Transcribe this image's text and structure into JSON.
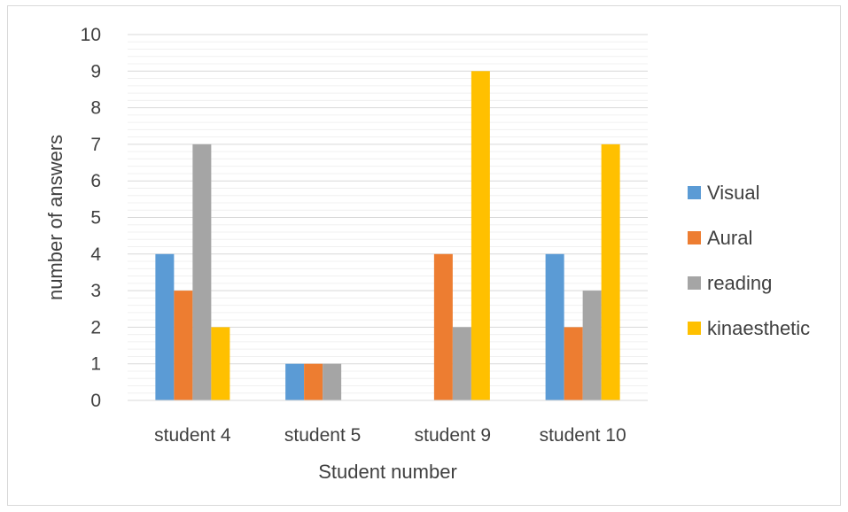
{
  "chart_data": {
    "type": "bar",
    "title": "",
    "xlabel": "Student number",
    "ylabel": "number of answers",
    "categories": [
      "student 4",
      "student 5",
      "student 9",
      "student 10"
    ],
    "ylim": [
      0,
      10
    ],
    "yticks": [
      0,
      1,
      2,
      3,
      4,
      5,
      6,
      7,
      8,
      9,
      10
    ],
    "minor_grid_step": 0.2,
    "grid": true,
    "legend_position": "right",
    "series": [
      {
        "name": "Visual",
        "color": "#5b9bd5",
        "values": [
          4,
          1,
          0,
          4
        ]
      },
      {
        "name": "Aural",
        "color": "#ed7d31",
        "values": [
          3,
          1,
          4,
          2
        ]
      },
      {
        "name": "reading",
        "color": "#a5a5a5",
        "values": [
          7,
          1,
          2,
          3
        ]
      },
      {
        "name": "kinaesthetic",
        "color": "#ffc000",
        "values": [
          2,
          0,
          9,
          7
        ]
      }
    ]
  }
}
